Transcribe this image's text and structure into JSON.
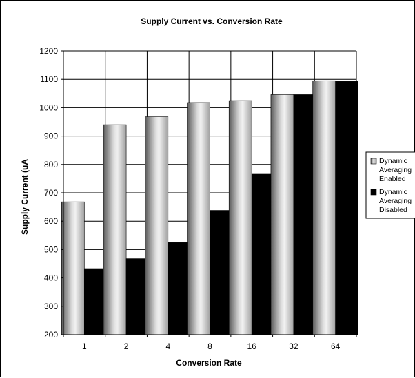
{
  "chart_data": {
    "type": "bar",
    "title": "Supply Current vs. Conversion Rate",
    "xlabel": "Conversion Rate",
    "ylabel": "Supply Current (uA",
    "categories": [
      "1",
      "2",
      "4",
      "8",
      "16",
      "32",
      "64"
    ],
    "ylim": [
      200,
      1200
    ],
    "yticks": [
      200,
      300,
      400,
      500,
      600,
      700,
      800,
      900,
      1000,
      1100,
      1200
    ],
    "grid": "major-x-and-y",
    "legend_position": "right",
    "series": [
      {
        "name": "Dynamic Averaging Enabled",
        "legend_lines": [
          "Dynamic",
          "Averaging",
          "Enabled"
        ],
        "values": [
          668,
          940,
          968,
          1018,
          1025,
          1046,
          1095
        ],
        "color": "#a8a8a8",
        "style": "gradient"
      },
      {
        "name": "Dynamic Averaging Disabled",
        "legend_lines": [
          "Dynamic",
          "Averaging",
          "Disabled"
        ],
        "values": [
          433,
          468,
          525,
          638,
          768,
          1046,
          1093
        ],
        "color": "#000000",
        "style": "solid"
      }
    ]
  }
}
